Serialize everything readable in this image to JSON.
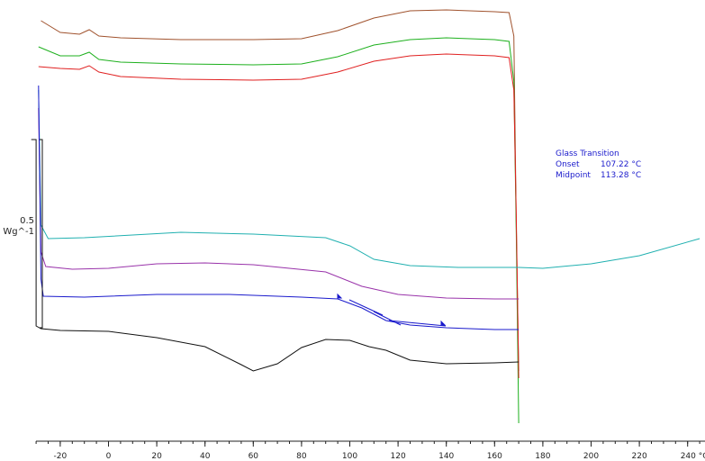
{
  "chart_data": {
    "type": "line",
    "xlim": [
      -32,
      245
    ],
    "ticks": [
      -20,
      0,
      20,
      40,
      60,
      80,
      100,
      120,
      140,
      160,
      180,
      200,
      220,
      240
    ],
    "tick_labels": [
      "-20",
      "0",
      "20",
      "40",
      "60",
      "80",
      "100",
      "120",
      "140",
      "160",
      "180",
      "200",
      "220",
      "240 °C"
    ],
    "minor_step": 5,
    "scale_bar": {
      "value_label": "0.5",
      "unit_label": "Wg^-1"
    },
    "annotation": {
      "title": "Glass Transition",
      "rows": [
        {
          "label": "Onset",
          "value": "107.22 °C"
        },
        {
          "label": "Midpoint",
          "value": "113.28 °C"
        }
      ]
    },
    "series": [
      {
        "color": "#a0522d",
        "points": [
          [
            -28,
            23
          ],
          [
            -20,
            36
          ],
          [
            -12,
            38
          ],
          [
            -8,
            33
          ],
          [
            -4,
            40
          ],
          [
            5,
            42
          ],
          [
            30,
            44
          ],
          [
            60,
            44
          ],
          [
            80,
            43
          ],
          [
            95,
            34
          ],
          [
            110,
            20
          ],
          [
            125,
            12
          ],
          [
            140,
            11
          ],
          [
            160,
            13
          ],
          [
            166,
            14
          ],
          [
            168,
            40
          ],
          [
            169,
            250
          ],
          [
            170,
            412
          ]
        ]
      },
      {
        "color": "#1db01d",
        "points": [
          [
            -29,
            52
          ],
          [
            -20,
            62
          ],
          [
            -12,
            62
          ],
          [
            -8,
            58
          ],
          [
            -4,
            66
          ],
          [
            5,
            69
          ],
          [
            30,
            71
          ],
          [
            60,
            72
          ],
          [
            80,
            71
          ],
          [
            95,
            63
          ],
          [
            110,
            50
          ],
          [
            125,
            44
          ],
          [
            140,
            42
          ],
          [
            160,
            44
          ],
          [
            166,
            46
          ],
          [
            168,
            90
          ],
          [
            169,
            260
          ],
          [
            170,
            470
          ]
        ]
      },
      {
        "color": "#e02020",
        "points": [
          [
            -29,
            74
          ],
          [
            -20,
            76
          ],
          [
            -12,
            77
          ],
          [
            -8,
            73
          ],
          [
            -4,
            80
          ],
          [
            5,
            85
          ],
          [
            30,
            88
          ],
          [
            60,
            89
          ],
          [
            80,
            88
          ],
          [
            95,
            80
          ],
          [
            110,
            68
          ],
          [
            125,
            62
          ],
          [
            140,
            60
          ],
          [
            160,
            62
          ],
          [
            166,
            64
          ],
          [
            168,
            100
          ],
          [
            169,
            240
          ],
          [
            170,
            420
          ]
        ]
      },
      {
        "color": "#20b0b0",
        "points": [
          [
            -29,
            100
          ],
          [
            -28,
            250
          ],
          [
            -25,
            265
          ],
          [
            -10,
            264
          ],
          [
            10,
            261
          ],
          [
            30,
            258
          ],
          [
            60,
            260
          ],
          [
            90,
            264
          ],
          [
            100,
            273
          ],
          [
            110,
            288
          ],
          [
            125,
            295
          ],
          [
            145,
            297
          ],
          [
            160,
            297
          ],
          [
            170,
            297
          ],
          [
            180,
            298
          ],
          [
            200,
            293
          ],
          [
            220,
            284
          ],
          [
            245,
            265
          ]
        ]
      },
      {
        "color": "#9933aa",
        "points": [
          [
            -29,
            120
          ],
          [
            -28,
            280
          ],
          [
            -26,
            296
          ],
          [
            -15,
            299
          ],
          [
            0,
            298
          ],
          [
            20,
            293
          ],
          [
            40,
            292
          ],
          [
            60,
            294
          ],
          [
            90,
            302
          ],
          [
            105,
            318
          ],
          [
            120,
            327
          ],
          [
            140,
            331
          ],
          [
            160,
            332
          ],
          [
            170,
            332
          ]
        ]
      },
      {
        "color": "#1a1acc",
        "points": [
          [
            -29,
            95
          ],
          [
            -28,
            310
          ],
          [
            -27,
            329
          ],
          [
            -10,
            330
          ],
          [
            20,
            327
          ],
          [
            50,
            327
          ],
          [
            80,
            330
          ],
          [
            95,
            332
          ],
          [
            105,
            342
          ],
          [
            115,
            356
          ],
          [
            125,
            361
          ],
          [
            140,
            364
          ],
          [
            160,
            366
          ],
          [
            170,
            366
          ]
        ]
      },
      {
        "color": "#111111",
        "points": [
          [
            -32,
            155
          ],
          [
            -30,
            155
          ],
          [
            -30,
            362
          ],
          [
            -28,
            365
          ],
          [
            -20,
            367
          ],
          [
            0,
            368
          ],
          [
            20,
            375
          ],
          [
            40,
            385
          ],
          [
            55,
            405
          ],
          [
            60,
            412
          ],
          [
            70,
            404
          ],
          [
            80,
            386
          ],
          [
            90,
            377
          ],
          [
            100,
            378
          ],
          [
            108,
            385
          ],
          [
            115,
            389
          ],
          [
            125,
            400
          ],
          [
            140,
            404
          ],
          [
            160,
            403
          ],
          [
            170,
            402
          ]
        ]
      }
    ]
  }
}
